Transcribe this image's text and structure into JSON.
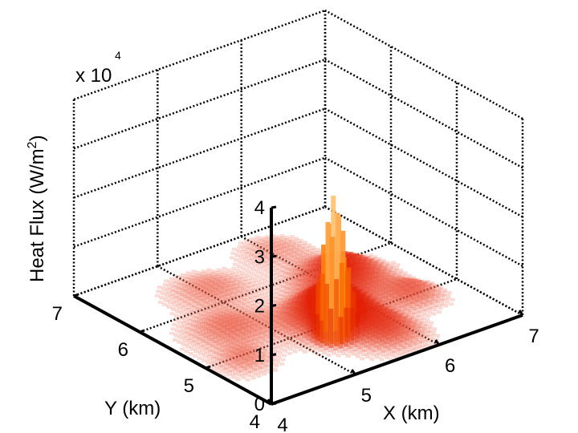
{
  "chart_data": {
    "type": "surface",
    "title": "",
    "exponent_label": "x 10",
    "exponent_power": "4",
    "zlabel": "Heat Flux (W/m",
    "zlabel_sup": "2",
    "zlabel_close": ")",
    "xlabel": "X (km)",
    "ylabel": "Y (km)",
    "xlim": [
      4,
      7
    ],
    "ylim": [
      4,
      7
    ],
    "zlim": [
      0,
      4
    ],
    "x_ticks": [
      "4",
      "5",
      "6",
      "7"
    ],
    "y_ticks": [
      "4",
      "5",
      "6",
      "7"
    ],
    "z_ticks": [
      "0",
      "1",
      "2",
      "3",
      "4"
    ],
    "z_scale": 10000,
    "grid": true,
    "colormap": [
      "#ffe0d0",
      "#e11a00",
      "#ff7a00",
      "#ffc070"
    ],
    "peaks": [
      {
        "x": 5.3,
        "y": 4.7,
        "z": 2.5,
        "spread": 0.1
      },
      {
        "x": 5.5,
        "y": 5.0,
        "z": 0.8,
        "spread": 0.3
      },
      {
        "x": 6.1,
        "y": 5.6,
        "z": 0.6,
        "spread": 0.3
      },
      {
        "x": 5.7,
        "y": 4.4,
        "z": 0.4,
        "spread": 0.25
      },
      {
        "x": 4.6,
        "y": 5.4,
        "z": 0.3,
        "spread": 0.3
      },
      {
        "x": 6.4,
        "y": 4.9,
        "z": 0.35,
        "spread": 0.2
      },
      {
        "x": 5.0,
        "y": 6.2,
        "z": 0.25,
        "spread": 0.3
      },
      {
        "x": 4.3,
        "y": 4.8,
        "z": 0.25,
        "spread": 0.2
      },
      {
        "x": 6.0,
        "y": 6.5,
        "z": 0.2,
        "spread": 0.25
      }
    ]
  }
}
